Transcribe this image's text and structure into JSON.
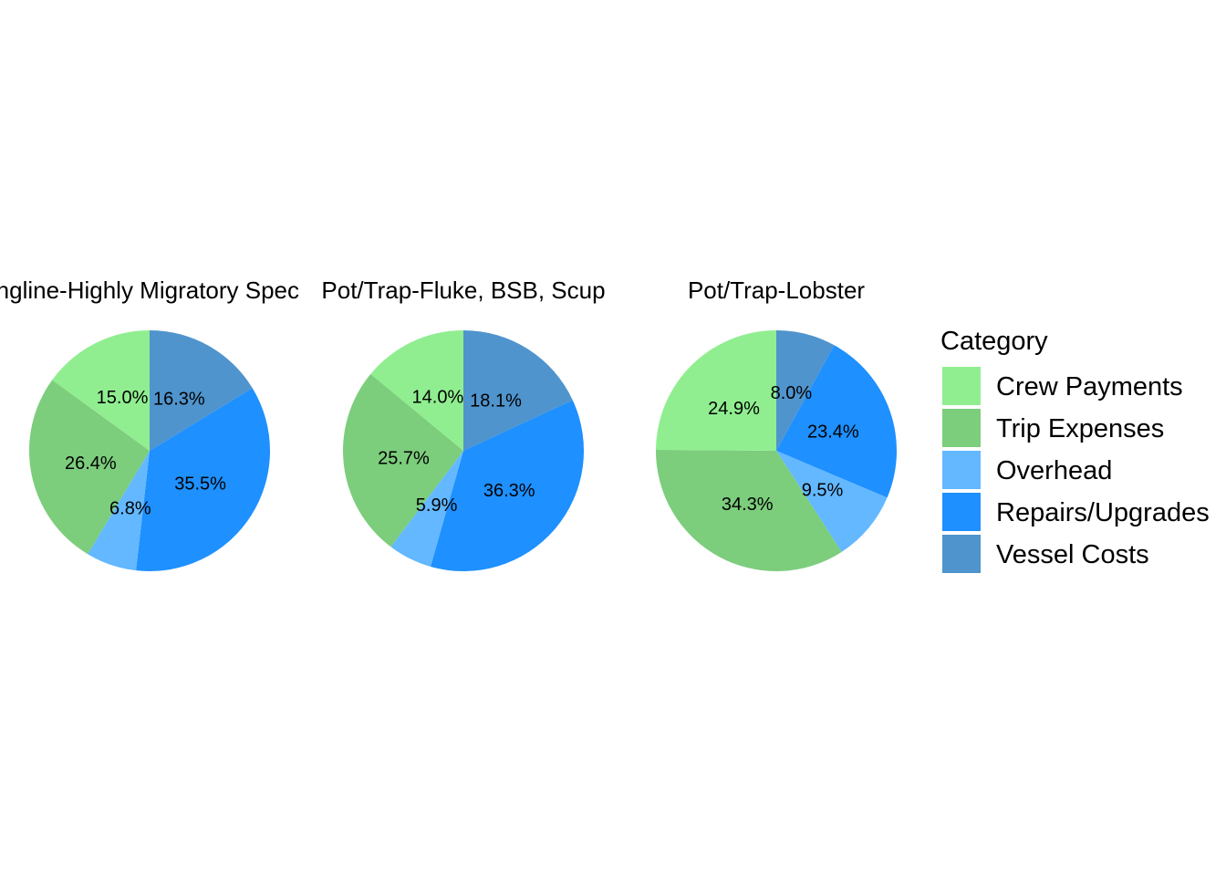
{
  "chart_data": {
    "type": "pie",
    "legend": {
      "title": "Category",
      "position": "right",
      "entries": [
        {
          "label": "Crew Payments",
          "color": "#90EE90"
        },
        {
          "label": "Trip Expenses",
          "color": "#7CCD7C"
        },
        {
          "label": "Overhead",
          "color": "#63B8FF"
        },
        {
          "label": "Repairs/Upgrades",
          "color": "#1E90FF"
        },
        {
          "label": "Vessel Costs",
          "color": "#4F94CD"
        }
      ]
    },
    "slice_order": [
      "Vessel Costs",
      "Repairs/Upgrades",
      "Overhead",
      "Trip Expenses",
      "Crew Payments"
    ],
    "panels": [
      {
        "title": "Longline-Highly Migratory Species",
        "slices": [
          {
            "category": "Vessel Costs",
            "value": 16.3,
            "label": "16.3%"
          },
          {
            "category": "Repairs/Upgrades",
            "value": 35.5,
            "label": "35.5%"
          },
          {
            "category": "Overhead",
            "value": 6.8,
            "label": "6.8%"
          },
          {
            "category": "Trip Expenses",
            "value": 26.4,
            "label": "26.4%"
          },
          {
            "category": "Crew Payments",
            "value": 15.0,
            "label": "15.0%"
          }
        ]
      },
      {
        "title": "Pot/Trap-Fluke, BSB, Scup",
        "slices": [
          {
            "category": "Vessel Costs",
            "value": 18.1,
            "label": "18.1%"
          },
          {
            "category": "Repairs/Upgrades",
            "value": 36.3,
            "label": "36.3%"
          },
          {
            "category": "Overhead",
            "value": 5.9,
            "label": "5.9%"
          },
          {
            "category": "Trip Expenses",
            "value": 25.7,
            "label": "25.7%"
          },
          {
            "category": "Crew Payments",
            "value": 14.0,
            "label": "14.0%"
          }
        ]
      },
      {
        "title": "Pot/Trap-Lobster",
        "slices": [
          {
            "category": "Vessel Costs",
            "value": 8.0,
            "label": "8.0%"
          },
          {
            "category": "Repairs/Upgrades",
            "value": 23.4,
            "label": "23.4%"
          },
          {
            "category": "Overhead",
            "value": 9.5,
            "label": "9.5%"
          },
          {
            "category": "Trip Expenses",
            "value": 34.3,
            "label": "34.3%"
          },
          {
            "category": "Crew Payments",
            "value": 24.9,
            "label": "24.9%"
          }
        ]
      }
    ]
  }
}
